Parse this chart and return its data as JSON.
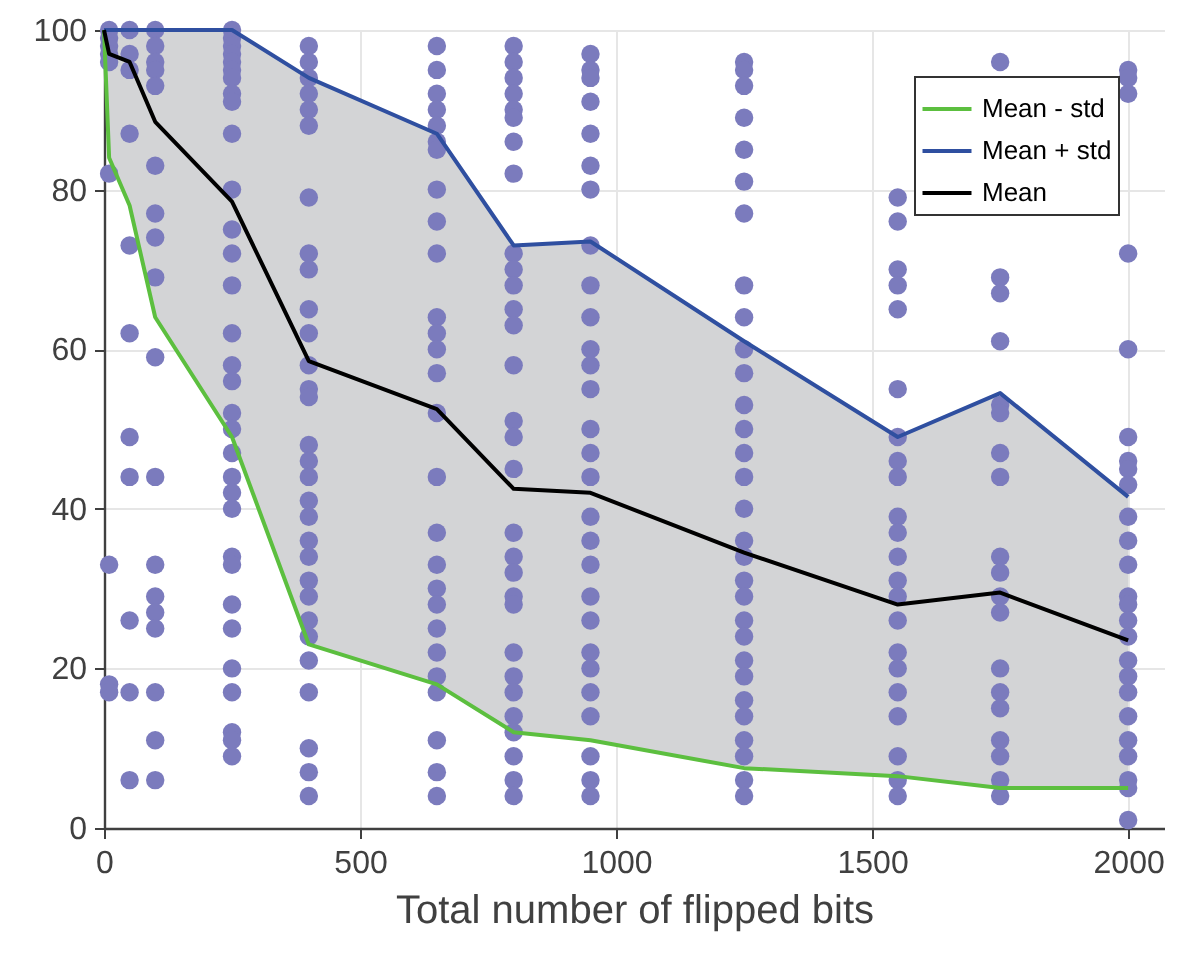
{
  "chart_data": {
    "type": "scatter",
    "xlabel": "Total number of flipped bits",
    "xlim": [
      0,
      2070
    ],
    "xticks": [
      0,
      500,
      1000,
      1500,
      2000
    ],
    "ylim": [
      0,
      100
    ],
    "yticks": [
      0,
      20,
      40,
      60,
      80,
      100
    ],
    "grid": true,
    "legend": "top right",
    "series": [
      {
        "color": "#7b7bbd",
        "marker": "circle",
        "x": [
          10,
          10,
          10,
          10,
          10,
          10,
          10,
          10,
          10,
          50,
          50,
          50,
          50,
          50,
          50,
          50,
          50,
          50,
          50,
          50,
          100,
          100,
          100,
          100,
          100,
          100,
          100,
          100,
          100,
          100,
          100,
          100,
          100,
          100,
          100,
          100,
          100,
          100,
          250,
          250,
          250,
          250,
          250,
          250,
          250,
          250,
          250,
          250,
          250,
          250,
          250,
          250,
          250,
          250,
          250,
          250,
          250,
          250,
          250,
          250,
          250,
          250,
          250,
          250,
          250,
          250,
          250,
          250,
          250,
          250,
          400,
          400,
          400,
          400,
          400,
          400,
          400,
          400,
          400,
          400,
          400,
          400,
          400,
          400,
          400,
          400,
          400,
          400,
          400,
          400,
          400,
          400,
          400,
          400,
          400,
          400,
          400,
          400,
          400,
          400,
          650,
          650,
          650,
          650,
          650,
          650,
          650,
          650,
          650,
          650,
          650,
          650,
          650,
          650,
          650,
          650,
          650,
          650,
          650,
          650,
          650,
          650,
          650,
          650,
          650,
          650,
          650,
          800,
          800,
          800,
          800,
          800,
          800,
          800,
          800,
          800,
          800,
          800,
          800,
          800,
          800,
          800,
          800,
          800,
          800,
          800,
          800,
          800,
          800,
          800,
          800,
          800,
          800,
          800,
          800,
          800,
          800,
          950,
          950,
          950,
          950,
          950,
          950,
          950,
          950,
          950,
          950,
          950,
          950,
          950,
          950,
          950,
          950,
          950,
          950,
          950,
          950,
          950,
          950,
          950,
          950,
          950,
          950,
          950,
          950,
          1250,
          1250,
          1250,
          1250,
          1250,
          1250,
          1250,
          1250,
          1250,
          1250,
          1250,
          1250,
          1250,
          1250,
          1250,
          1250,
          1250,
          1250,
          1250,
          1250,
          1250,
          1250,
          1250,
          1250,
          1250,
          1250,
          1250,
          1250,
          1250,
          1250,
          1550,
          1550,
          1550,
          1550,
          1550,
          1550,
          1550,
          1550,
          1550,
          1550,
          1550,
          1550,
          1550,
          1550,
          1550,
          1550,
          1550,
          1550,
          1550,
          1550,
          1550,
          1550,
          1750,
          1750,
          1750,
          1750,
          1750,
          1750,
          1750,
          1750,
          1750,
          1750,
          1750,
          1750,
          1750,
          1750,
          1750,
          1750,
          1750,
          1750,
          1750,
          2000,
          2000,
          2000,
          2000,
          2000,
          2000,
          2000,
          2000,
          2000,
          2000,
          2000,
          2000,
          2000,
          2000,
          2000,
          2000,
          2000,
          2000,
          2000,
          2000,
          2000,
          2000,
          2000,
          2000,
          2000
        ],
        "values": [
          100,
          99,
          98,
          97,
          96,
          82,
          33,
          18,
          17,
          100,
          97,
          95,
          87,
          73,
          62,
          49,
          44,
          26,
          17,
          6,
          100,
          98,
          96,
          95,
          93,
          83,
          77,
          74,
          69,
          59,
          44,
          33,
          29,
          27,
          25,
          17,
          11,
          6,
          100,
          99,
          98,
          97,
          96,
          95,
          94,
          92,
          91,
          87,
          80,
          75,
          72,
          68,
          62,
          58,
          56,
          52,
          50,
          47,
          44,
          42,
          40,
          34,
          33,
          28,
          25,
          20,
          17,
          12,
          11,
          9,
          98,
          96,
          94,
          92,
          90,
          88,
          79,
          72,
          70,
          65,
          62,
          58,
          55,
          54,
          48,
          46,
          44,
          41,
          39,
          36,
          34,
          31,
          29,
          26,
          24,
          21,
          17,
          10,
          7,
          4,
          98,
          95,
          92,
          90,
          88,
          86,
          85,
          80,
          76,
          72,
          64,
          62,
          60,
          57,
          52,
          44,
          37,
          33,
          30,
          28,
          25,
          22,
          19,
          17,
          11,
          7,
          4,
          98,
          96,
          94,
          92,
          90,
          89,
          86,
          82,
          72,
          70,
          68,
          65,
          63,
          58,
          51,
          49,
          45,
          37,
          34,
          32,
          29,
          28,
          22,
          19,
          17,
          14,
          12,
          9,
          6,
          4,
          97,
          95,
          94,
          91,
          87,
          83,
          80,
          73,
          68,
          64,
          60,
          58,
          55,
          50,
          47,
          44,
          39,
          36,
          33,
          29,
          26,
          22,
          20,
          17,
          14,
          9,
          6,
          4,
          96,
          95,
          93,
          89,
          85,
          81,
          77,
          68,
          64,
          60,
          57,
          53,
          50,
          47,
          44,
          40,
          36,
          34,
          31,
          29,
          26,
          24,
          21,
          19,
          16,
          14,
          11,
          9,
          6,
          4,
          79,
          76,
          70,
          68,
          65,
          55,
          49,
          46,
          44,
          39,
          37,
          34,
          31,
          29,
          26,
          22,
          20,
          17,
          14,
          9,
          6,
          4,
          96,
          69,
          67,
          61,
          53,
          52,
          47,
          44,
          34,
          32,
          29,
          27,
          20,
          17,
          15,
          11,
          9,
          6,
          4,
          95,
          94,
          92,
          72,
          60,
          49,
          46,
          45,
          43,
          39,
          36,
          33,
          29,
          28,
          26,
          24,
          21,
          19,
          17,
          14,
          11,
          9,
          6,
          5,
          1
        ]
      },
      {
        "type": "line",
        "name": "Mean - std",
        "color": "#5cbf3f",
        "x": [
          0,
          10,
          50,
          100,
          250,
          400,
          650,
          800,
          950,
          1250,
          1550,
          1750,
          2000
        ],
        "values": [
          100,
          84,
          78,
          64,
          49,
          23,
          18,
          12,
          11,
          7.5,
          6.5,
          5,
          5
        ]
      },
      {
        "type": "line",
        "name": "Mean + std",
        "color": "#2f4fa0",
        "x": [
          0,
          10,
          50,
          100,
          250,
          400,
          650,
          800,
          950,
          1250,
          1550,
          1750,
          2000
        ],
        "values": [
          100,
          100,
          100,
          100,
          100,
          94,
          87,
          73,
          73.5,
          61,
          49,
          54.5,
          41.5
        ]
      },
      {
        "type": "line",
        "name": "Mean",
        "color": "#000000",
        "x": [
          0,
          10,
          50,
          100,
          250,
          400,
          650,
          800,
          950,
          1250,
          1550,
          1750,
          2000
        ],
        "values": [
          100,
          97,
          96,
          88.5,
          78.5,
          58.5,
          52.5,
          42.5,
          42,
          34.5,
          28,
          29.5,
          23.5
        ],
        "lower": [
          100,
          84,
          78,
          64,
          49,
          23,
          18,
          12,
          11,
          7.5,
          6.5,
          5,
          5
        ],
        "upper": [
          100,
          100,
          100,
          100,
          100,
          94,
          87,
          73,
          73.5,
          61,
          49,
          54.5,
          41.5
        ]
      }
    ]
  }
}
